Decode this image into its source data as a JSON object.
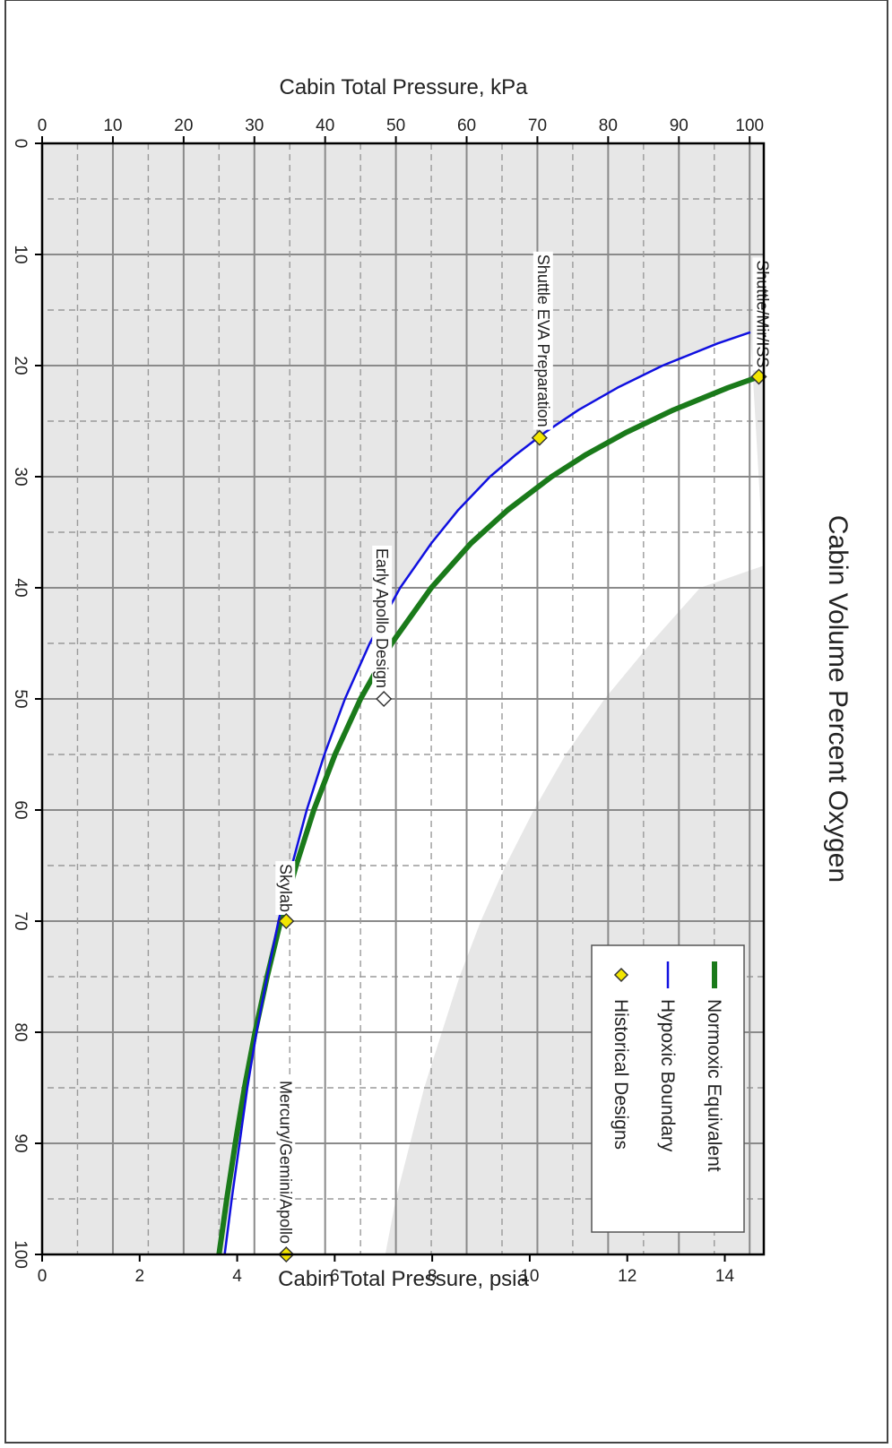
{
  "chart_data": {
    "type": "line",
    "title": "",
    "xlabel": "Cabin Volume Percent Oxygen",
    "ylabel": "Cabin Total Pressure, kPa",
    "y2label": "Cabin Total Pressure, psia",
    "xlim": [
      0,
      100
    ],
    "ylim": [
      0,
      102
    ],
    "y2lim": [
      0,
      14.8
    ],
    "grid": true,
    "legend_position": "top-right",
    "x_ticks": [
      0,
      10,
      20,
      30,
      40,
      50,
      60,
      70,
      80,
      90,
      100
    ],
    "y_ticks": [
      0,
      10,
      20,
      30,
      40,
      50,
      60,
      70,
      80,
      90,
      100
    ],
    "y2_ticks": [
      0,
      2,
      4,
      6,
      8,
      10,
      12,
      14
    ],
    "legend": [
      {
        "label": "Normoxic Equivalent",
        "color": "#1a7a1a"
      },
      {
        "label": "Hypoxic Boundary",
        "color": "#1010e0"
      },
      {
        "label": "Historical Designs",
        "color": "#f2e600"
      }
    ],
    "series": [
      {
        "name": "Normoxic Equivalent",
        "color": "#1a7a1a",
        "x": [
          21,
          22,
          24,
          26,
          28,
          30,
          33,
          36,
          40,
          45,
          50,
          55,
          60,
          65,
          70,
          75,
          80,
          85,
          90,
          95,
          100
        ],
        "y": [
          101.3,
          96.9,
          89.2,
          82.6,
          76.9,
          72.0,
          65.8,
          60.6,
          55.0,
          49.4,
          45.0,
          41.4,
          38.4,
          35.9,
          33.7,
          31.8,
          30.1,
          28.6,
          27.3,
          26.1,
          25.0
        ]
      },
      {
        "name": "Hypoxic Boundary",
        "color": "#1010e0",
        "x": [
          17,
          18,
          20,
          22,
          24,
          26,
          28,
          30,
          33,
          36,
          40,
          45,
          50,
          55,
          60,
          65,
          70,
          75,
          80,
          85,
          90,
          95,
          100
        ],
        "y": [
          100.1,
          95.5,
          87.7,
          81.3,
          75.8,
          71.1,
          67.0,
          63.3,
          58.8,
          55.0,
          50.6,
          46.3,
          42.8,
          39.9,
          37.4,
          35.3,
          33.4,
          31.8,
          30.3,
          29.0,
          27.9,
          26.8,
          25.8
        ]
      }
    ],
    "shaded_band": {
      "x": [
        38,
        40,
        45,
        50,
        55,
        60,
        65,
        70,
        75,
        80,
        85,
        90,
        95,
        100
      ],
      "y": [
        102,
        93,
        86,
        79.5,
        74,
        69.5,
        65.5,
        62,
        59,
        56.5,
        54,
        52,
        50,
        48.5
      ]
    },
    "points": [
      {
        "label": "Shuttle/Mir/ISS",
        "x": 21,
        "y": 101.3,
        "marker": "filled"
      },
      {
        "label": "Shuttle EVA Preparation",
        "x": 26.5,
        "y": 70.3,
        "marker": "filled"
      },
      {
        "label": "Early Apollo Design",
        "x": 50,
        "y": 48.3,
        "marker": "open"
      },
      {
        "label": "Skylab",
        "x": 70,
        "y": 34.5,
        "marker": "filled"
      },
      {
        "label": "Mercury/Gemini/Apollo",
        "x": 100,
        "y": 34.5,
        "marker": "filled"
      }
    ]
  }
}
